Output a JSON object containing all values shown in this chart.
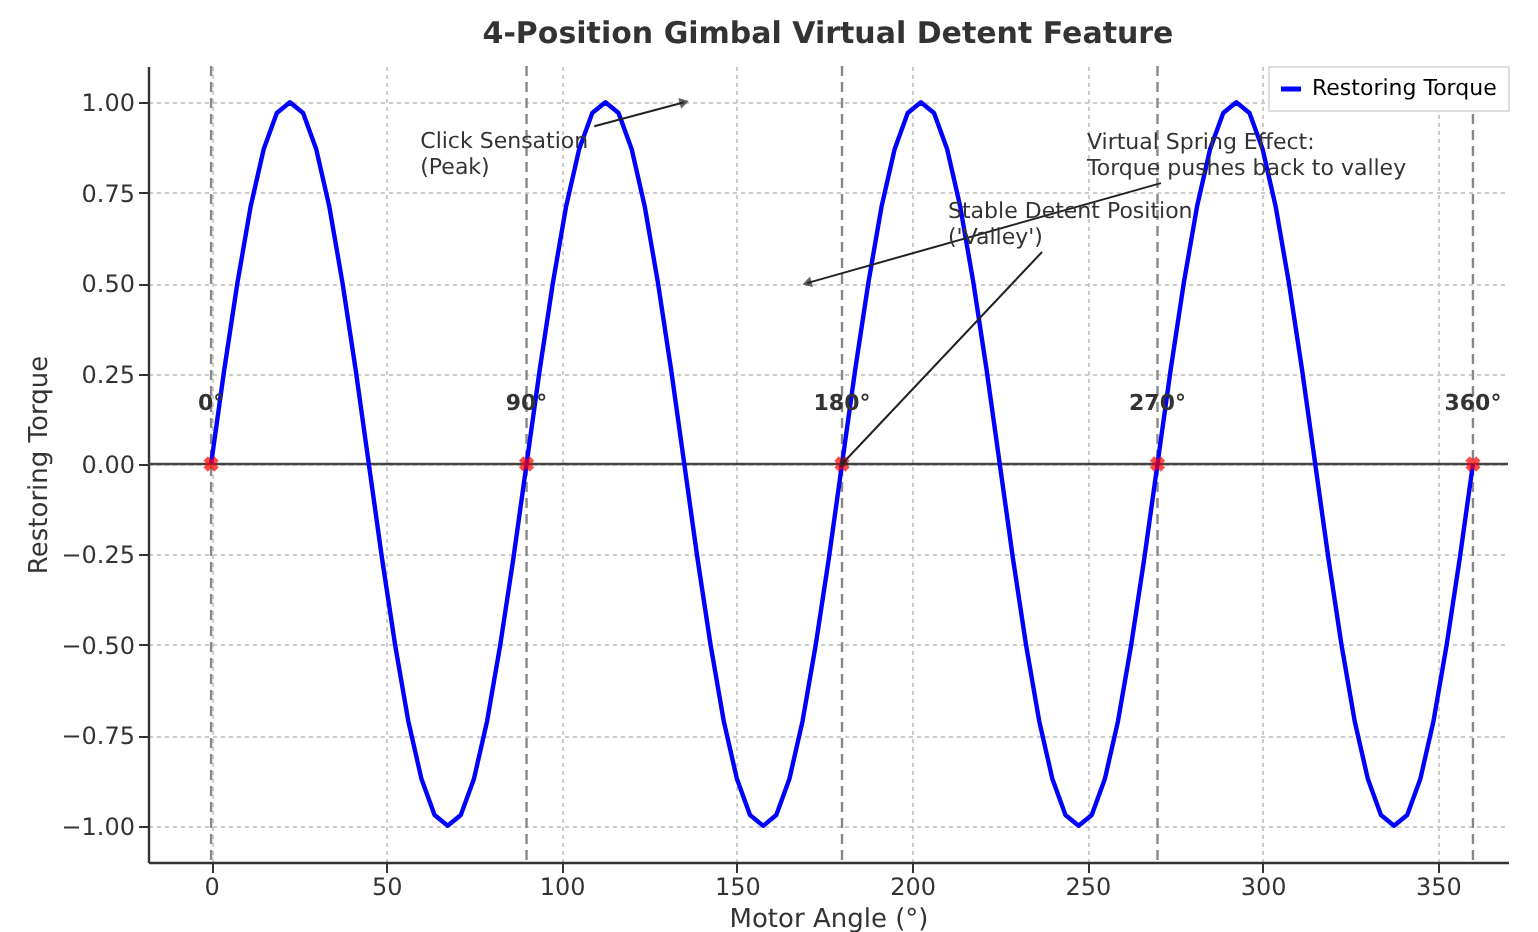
{
  "chart_data": {
    "type": "line",
    "title": "4-Position Gimbal Virtual Detent Feature",
    "xlabel": "Motor Angle (°)",
    "ylabel": "Restoring Torque",
    "x": [
      0,
      3.75,
      7.5,
      11.25,
      15,
      18.75,
      22.5,
      26.25,
      30,
      33.75,
      37.5,
      41.25,
      45,
      48.75,
      52.5,
      56.25,
      60,
      63.75,
      67.5,
      71.25,
      75,
      78.75,
      82.5,
      86.25,
      90,
      93.75,
      97.5,
      101.25,
      105,
      108.75,
      112.5,
      116.25,
      120,
      123.75,
      127.5,
      131.25,
      135,
      138.75,
      142.5,
      146.25,
      150,
      153.75,
      157.5,
      161.25,
      165,
      168.75,
      172.5,
      176.25,
      180,
      183.75,
      187.5,
      191.25,
      195,
      198.75,
      202.5,
      206.25,
      210,
      213.75,
      217.5,
      221.25,
      225,
      228.75,
      232.5,
      236.25,
      240,
      243.75,
      247.5,
      251.25,
      255,
      258.75,
      262.5,
      266.25,
      270,
      273.75,
      277.5,
      281.25,
      285,
      288.75,
      292.5,
      296.25,
      300,
      303.75,
      307.5,
      311.25,
      315,
      318.75,
      322.5,
      326.25,
      330,
      333.75,
      337.5,
      341.25,
      345,
      348.75,
      352.5,
      356.25,
      360
    ],
    "series": [
      {
        "name": "Restoring Torque",
        "color": "#0000ff",
        "values": [
          0,
          0.26,
          0.5,
          0.71,
          0.87,
          0.97,
          1,
          0.97,
          0.87,
          0.71,
          0.5,
          0.26,
          0,
          -0.26,
          -0.5,
          -0.71,
          -0.87,
          -0.97,
          -1,
          -0.97,
          -0.87,
          -0.71,
          -0.5,
          -0.26,
          0,
          0.26,
          0.5,
          0.71,
          0.87,
          0.97,
          1,
          0.97,
          0.87,
          0.71,
          0.5,
          0.26,
          0,
          -0.26,
          -0.5,
          -0.71,
          -0.87,
          -0.97,
          -1,
          -0.97,
          -0.87,
          -0.71,
          -0.5,
          -0.26,
          0,
          0.26,
          0.5,
          0.71,
          0.87,
          0.97,
          1,
          0.97,
          0.87,
          0.71,
          0.5,
          0.26,
          0,
          -0.26,
          -0.5,
          -0.71,
          -0.87,
          -0.97,
          -1,
          -0.97,
          -0.87,
          -0.71,
          -0.5,
          -0.26,
          0,
          0.26,
          0.5,
          0.71,
          0.87,
          0.97,
          1,
          0.97,
          0.87,
          0.71,
          0.5,
          0.26,
          0,
          -0.26,
          -0.5,
          -0.71,
          -0.87,
          -0.97,
          -1,
          -0.97,
          -0.87,
          -0.71,
          -0.5,
          -0.26,
          0
        ]
      },
      {
        "type": "scatter",
        "marker": "cross",
        "color": "#ff0000",
        "x": [
          0,
          90,
          180,
          270,
          360
        ],
        "values": [
          0,
          0,
          0,
          0,
          0
        ]
      }
    ],
    "xlim": [
      -18,
      370
    ],
    "ylim": [
      -1.1,
      1.1
    ],
    "xticks": [
      0,
      50,
      100,
      150,
      200,
      250,
      300,
      350
    ],
    "yticks": [
      {
        "value": -1,
        "label": "−1.00"
      },
      {
        "value": -0.75,
        "label": "−0.75"
      },
      {
        "value": -0.5,
        "label": "−0.50"
      },
      {
        "value": -0.25,
        "label": "−0.25"
      },
      {
        "value": 0,
        "label": "0.00"
      },
      {
        "value": 0.25,
        "label": "0.25"
      },
      {
        "value": 0.5,
        "label": "0.50"
      },
      {
        "value": 0.75,
        "label": "0.75"
      },
      {
        "value": 1,
        "label": "1.00"
      }
    ],
    "ref_lines": [
      {
        "axis": "x",
        "value": 0,
        "color": "#888888",
        "line_style": "dashed"
      },
      {
        "axis": "x",
        "value": 90,
        "color": "#888888",
        "line_style": "dashed"
      },
      {
        "axis": "x",
        "value": 180,
        "color": "#888888",
        "line_style": "dashed"
      },
      {
        "axis": "x",
        "value": 270,
        "color": "#888888",
        "line_style": "dashed"
      },
      {
        "axis": "x",
        "value": 360,
        "color": "#888888",
        "line_style": "dashed"
      },
      {
        "axis": "y",
        "value": 0,
        "color": "#444444",
        "line_style": "solid"
      }
    ],
    "annotations": [
      {
        "text": "0°",
        "x": 0,
        "y": 0
      },
      {
        "text": "90°",
        "x": 90,
        "y": 0
      },
      {
        "text": "180°",
        "x": 180,
        "y": 0
      },
      {
        "text": "270°",
        "x": 270,
        "y": 0
      },
      {
        "text": "360°",
        "x": 360,
        "y": 0
      },
      {
        "text": "Click Sensation\n(Peak)",
        "x": 135,
        "y": 1
      },
      {
        "text": "Virtual Spring Effect:\nTorque pushes back to valley",
        "x": 170,
        "y": 0.5
      },
      {
        "text": "Stable Detent Position\n('Valley')",
        "x": 180,
        "y": 0
      }
    ],
    "grid": true,
    "legend": "top right",
    "line_style": "solid",
    "marker": "none"
  }
}
